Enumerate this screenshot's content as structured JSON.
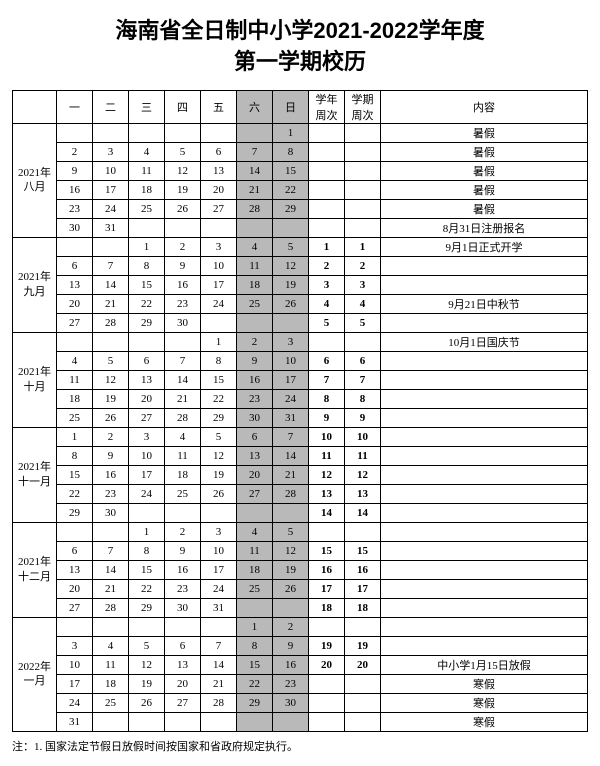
{
  "title_line1": "海南省全日制中小学2021-2022学年度",
  "title_line2": "第一学期校历",
  "headers": {
    "mon": "一",
    "tue": "二",
    "wed": "三",
    "thu": "四",
    "fri": "五",
    "sat": "六",
    "sun": "日",
    "school_week": "学年\n周次",
    "term_week": "学期\n周次",
    "note": "内容"
  },
  "months": [
    {
      "label": "2021年\n八月",
      "rows": [
        {
          "d": [
            "",
            "",
            "",
            "",
            "",
            "",
            "1",
            "",
            ""
          ],
          "note": "暑假"
        },
        {
          "d": [
            "2",
            "3",
            "4",
            "5",
            "6",
            "7",
            "8",
            "",
            ""
          ],
          "note": "暑假"
        },
        {
          "d": [
            "9",
            "10",
            "11",
            "12",
            "13",
            "14",
            "15",
            "",
            ""
          ],
          "note": "暑假"
        },
        {
          "d": [
            "16",
            "17",
            "18",
            "19",
            "20",
            "21",
            "22",
            "",
            ""
          ],
          "note": "暑假"
        },
        {
          "d": [
            "23",
            "24",
            "25",
            "26",
            "27",
            "28",
            "29",
            "",
            ""
          ],
          "note": "暑假"
        },
        {
          "d": [
            "30",
            "31",
            "",
            "",
            "",
            "",
            "",
            "",
            ""
          ],
          "note": "8月31日注册报名"
        }
      ]
    },
    {
      "label": "2021年\n九月",
      "rows": [
        {
          "d": [
            "",
            "",
            "1",
            "2",
            "3",
            "4",
            "5",
            "1",
            "1"
          ],
          "bold": [
            7,
            8
          ],
          "note": "9月1日正式开学"
        },
        {
          "d": [
            "6",
            "7",
            "8",
            "9",
            "10",
            "11",
            "12",
            "2",
            "2"
          ],
          "bold": [
            7,
            8
          ],
          "note": ""
        },
        {
          "d": [
            "13",
            "14",
            "15",
            "16",
            "17",
            "18",
            "19",
            "3",
            "3"
          ],
          "bold": [
            7,
            8
          ],
          "note": ""
        },
        {
          "d": [
            "20",
            "21",
            "22",
            "23",
            "24",
            "25",
            "26",
            "4",
            "4"
          ],
          "bold": [
            7,
            8
          ],
          "note": "9月21日中秋节"
        },
        {
          "d": [
            "27",
            "28",
            "29",
            "30",
            "",
            "",
            "",
            "5",
            "5"
          ],
          "bold": [
            7,
            8
          ],
          "note": ""
        }
      ]
    },
    {
      "label": "2021年\n十月",
      "rows": [
        {
          "d": [
            "",
            "",
            "",
            "",
            "1",
            "2",
            "3",
            "",
            ""
          ],
          "note": "10月1日国庆节"
        },
        {
          "d": [
            "4",
            "5",
            "6",
            "7",
            "8",
            "9",
            "10",
            "6",
            "6"
          ],
          "bold": [
            7,
            8
          ],
          "note": ""
        },
        {
          "d": [
            "11",
            "12",
            "13",
            "14",
            "15",
            "16",
            "17",
            "7",
            "7"
          ],
          "bold": [
            7,
            8
          ],
          "note": ""
        },
        {
          "d": [
            "18",
            "19",
            "20",
            "21",
            "22",
            "23",
            "24",
            "8",
            "8"
          ],
          "bold": [
            7,
            8
          ],
          "note": ""
        },
        {
          "d": [
            "25",
            "26",
            "27",
            "28",
            "29",
            "30",
            "31",
            "9",
            "9"
          ],
          "bold": [
            7,
            8
          ],
          "note": ""
        }
      ]
    },
    {
      "label": "2021年\n十一月",
      "rows": [
        {
          "d": [
            "1",
            "2",
            "3",
            "4",
            "5",
            "6",
            "7",
            "10",
            "10"
          ],
          "bold": [
            7,
            8
          ],
          "note": ""
        },
        {
          "d": [
            "8",
            "9",
            "10",
            "11",
            "12",
            "13",
            "14",
            "11",
            "11"
          ],
          "bold": [
            7,
            8
          ],
          "note": ""
        },
        {
          "d": [
            "15",
            "16",
            "17",
            "18",
            "19",
            "20",
            "21",
            "12",
            "12"
          ],
          "bold": [
            7,
            8
          ],
          "note": ""
        },
        {
          "d": [
            "22",
            "23",
            "24",
            "25",
            "26",
            "27",
            "28",
            "13",
            "13"
          ],
          "bold": [
            7,
            8
          ],
          "note": ""
        },
        {
          "d": [
            "29",
            "30",
            "",
            "",
            "",
            "",
            "",
            "14",
            "14"
          ],
          "bold": [
            7,
            8
          ],
          "note": ""
        }
      ]
    },
    {
      "label": "2021年\n十二月",
      "rows": [
        {
          "d": [
            "",
            "",
            "1",
            "2",
            "3",
            "4",
            "5",
            "",
            ""
          ],
          "note": ""
        },
        {
          "d": [
            "6",
            "7",
            "8",
            "9",
            "10",
            "11",
            "12",
            "15",
            "15"
          ],
          "bold": [
            7,
            8
          ],
          "note": ""
        },
        {
          "d": [
            "13",
            "14",
            "15",
            "16",
            "17",
            "18",
            "19",
            "16",
            "16"
          ],
          "bold": [
            7,
            8
          ],
          "note": ""
        },
        {
          "d": [
            "20",
            "21",
            "22",
            "23",
            "24",
            "25",
            "26",
            "17",
            "17"
          ],
          "bold": [
            7,
            8
          ],
          "note": ""
        },
        {
          "d": [
            "27",
            "28",
            "29",
            "30",
            "31",
            "",
            "",
            "18",
            "18"
          ],
          "bold": [
            7,
            8
          ],
          "note": ""
        }
      ]
    },
    {
      "label": "2022年\n一月",
      "rows": [
        {
          "d": [
            "",
            "",
            "",
            "",
            "",
            "1",
            "2",
            "",
            ""
          ],
          "note": ""
        },
        {
          "d": [
            "3",
            "4",
            "5",
            "6",
            "7",
            "8",
            "9",
            "19",
            "19"
          ],
          "bold": [
            7,
            8
          ],
          "note": ""
        },
        {
          "d": [
            "10",
            "11",
            "12",
            "13",
            "14",
            "15",
            "16",
            "20",
            "20"
          ],
          "bold": [
            7,
            8
          ],
          "note": "中小学1月15日放假"
        },
        {
          "d": [
            "17",
            "18",
            "19",
            "20",
            "21",
            "22",
            "23",
            "",
            ""
          ],
          "note": "寒假"
        },
        {
          "d": [
            "24",
            "25",
            "26",
            "27",
            "28",
            "29",
            "30",
            "",
            ""
          ],
          "note": "寒假"
        },
        {
          "d": [
            "31",
            "",
            "",
            "",
            "",
            "",
            "",
            "",
            ""
          ],
          "note": "寒假"
        }
      ]
    }
  ],
  "footnote": "注：1. 国家法定节假日放假时间按国家和省政府规定执行。",
  "colors": {
    "shaded": "#b9b9b9",
    "border": "#000000",
    "bg": "#ffffff"
  }
}
